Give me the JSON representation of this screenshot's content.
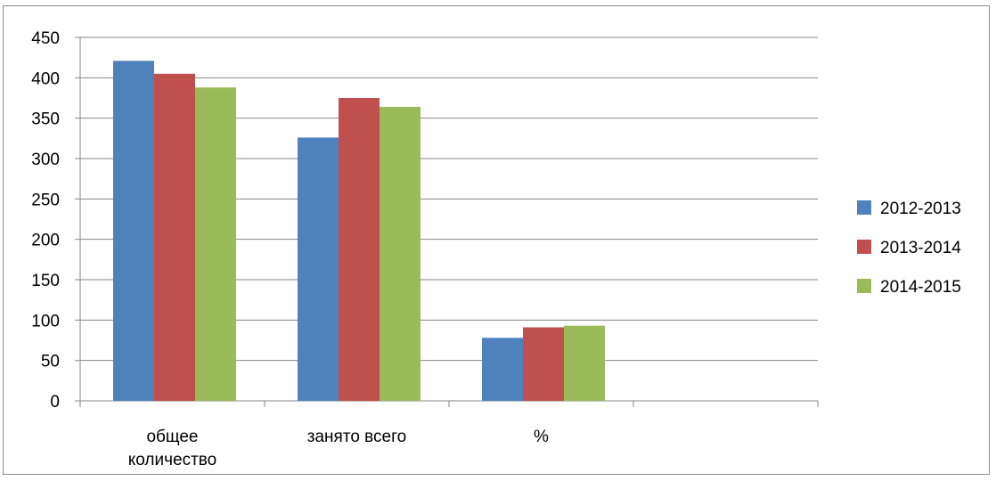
{
  "chart_data": {
    "type": "bar",
    "title": "",
    "xlabel": "",
    "ylabel": "",
    "categories": [
      [
        "общее",
        "количество"
      ],
      [
        "занято всего"
      ],
      [
        "%"
      ],
      [
        ""
      ]
    ],
    "series": [
      {
        "name": "2012-2013",
        "color": "#4f81bd",
        "values": [
          421,
          326,
          78,
          null
        ]
      },
      {
        "name": "2013-2014",
        "color": "#c0504d",
        "values": [
          405,
          375,
          91,
          null
        ]
      },
      {
        "name": "2014-2015",
        "color": "#9bbb59",
        "values": [
          388,
          364,
          93,
          null
        ]
      }
    ],
    "ylim": [
      0,
      450
    ],
    "yticks": [
      0,
      50,
      100,
      150,
      200,
      250,
      300,
      350,
      400,
      450
    ],
    "grid": true,
    "legend_position": "right"
  }
}
